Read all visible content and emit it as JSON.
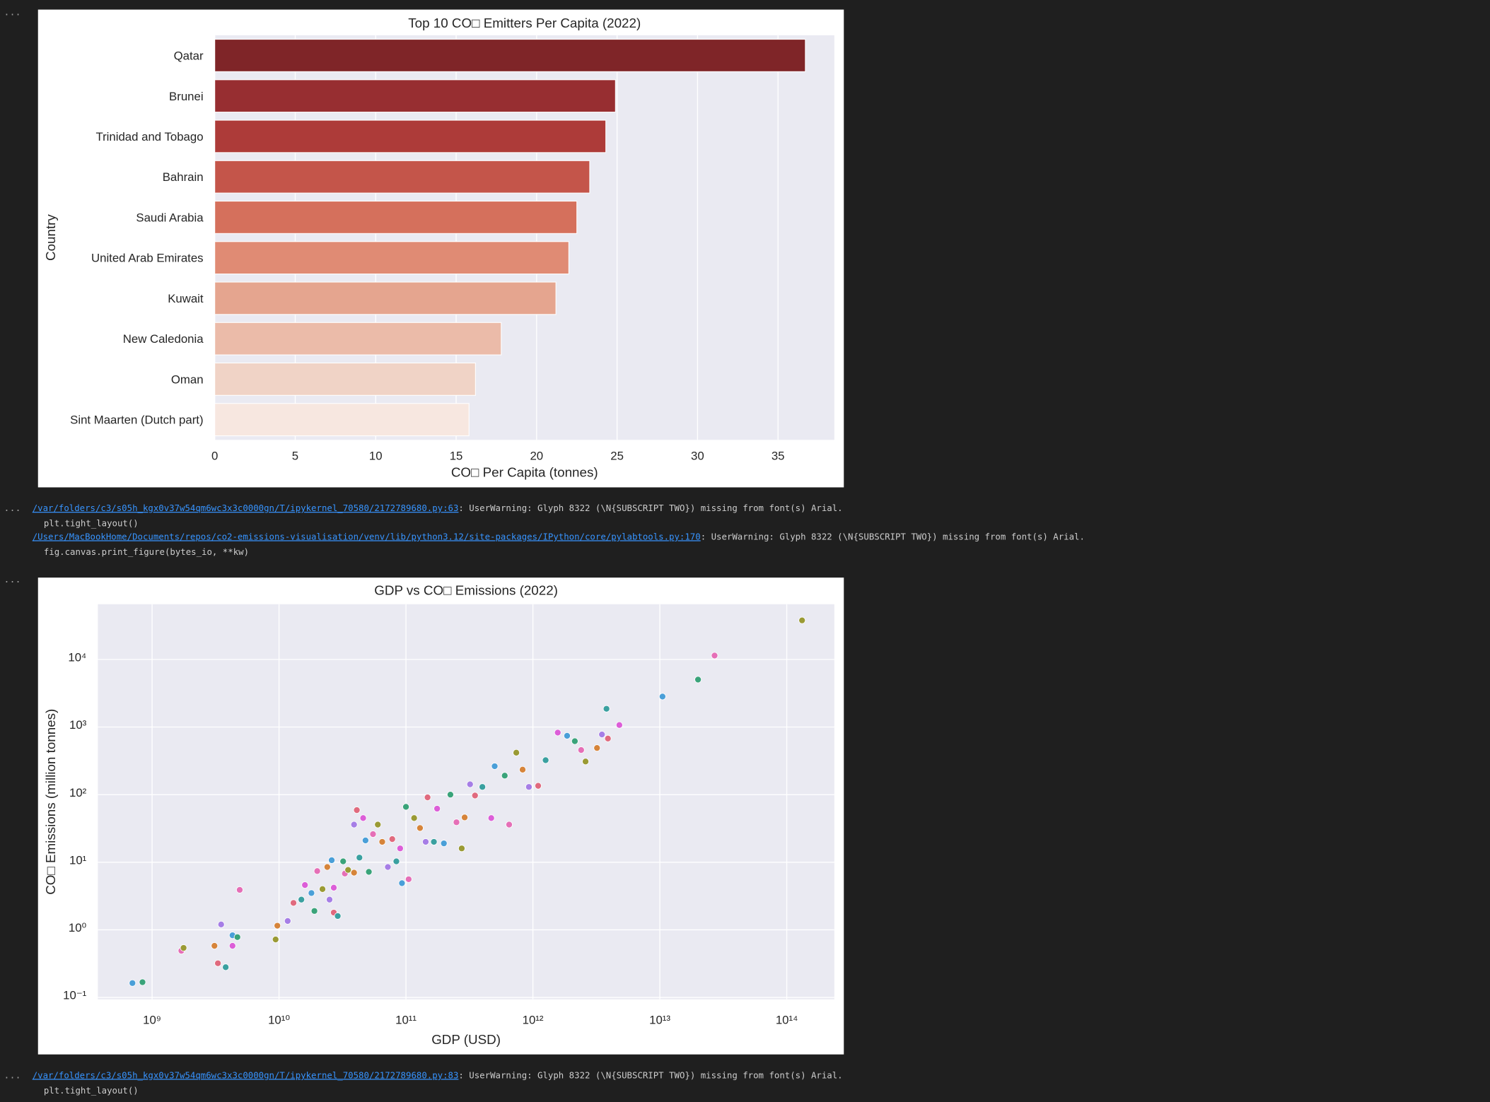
{
  "prompt": "...",
  "outputs": [
    {
      "link": "/var/folders/c3/s05h_kgx0v37w54qm6wc3x3c0000gn/T/ipykernel_70580/2172789680.py:63",
      "message": ": UserWarning: Glyph 8322 (\\N{SUBSCRIPT TWO}) missing from font(s) Arial.",
      "code": "plt.tight_layout()"
    },
    {
      "link": "/Users/MacBookHome/Documents/repos/co2-emissions-visualisation/venv/lib/python3.12/site-packages/IPython/core/pylabtools.py:170",
      "message": ": UserWarning: Glyph 8322 (\\N{SUBSCRIPT TWO}) missing from font(s) Arial.",
      "code": "fig.canvas.print_figure(bytes_io, **kw)"
    },
    {
      "link": "/var/folders/c3/s05h_kgx0v37w54qm6wc3x3c0000gn/T/ipykernel_70580/2172789680.py:83",
      "message": ": UserWarning: Glyph 8322 (\\N{SUBSCRIPT TWO}) missing from font(s) Arial.",
      "code": "plt.tight_layout()"
    }
  ],
  "chart_data": [
    {
      "type": "bar",
      "orientation": "horizontal",
      "title": "Top 10 CO□ Emitters Per Capita (2022)",
      "xlabel": "CO□ Per Capita (tonnes)",
      "ylabel": "Country",
      "categories": [
        "Qatar",
        "Brunei",
        "Trinidad and Tobago",
        "Bahrain",
        "Saudi Arabia",
        "United Arab Emirates",
        "Kuwait",
        "New Caledonia",
        "Oman",
        "Sint Maarten (Dutch part)"
      ],
      "values": [
        36.7,
        24.9,
        24.3,
        23.3,
        22.5,
        22.0,
        21.2,
        17.8,
        16.2,
        15.8
      ],
      "colors": [
        "#7f2528",
        "#972e31",
        "#ad3b39",
        "#c4554a",
        "#d5705c",
        "#e08b74",
        "#e5a58f",
        "#ebbba9",
        "#f0d3c6",
        "#f7e7e0"
      ],
      "xlim": [
        0,
        38.5
      ],
      "xticks": [
        0,
        5,
        10,
        15,
        20,
        25,
        30,
        35
      ],
      "grid": true
    },
    {
      "type": "scatter",
      "title": "GDP vs CO□ Emissions (2022)",
      "xlabel": "GDP (USD)",
      "ylabel": "CO□ Emissions (million tonnes)",
      "xscale": "log",
      "yscale": "log",
      "grid": true,
      "palette": [
        "#4a9fd8",
        "#3aa37a",
        "#e56fb7",
        "#9a9a34",
        "#d6843a",
        "#a67ee6",
        "#e06a7e",
        "#3aa0a0",
        "#dc5ed8"
      ],
      "xlim": [
        374000000,
        237000000000000
      ],
      "ylim": [
        0.0937,
        65600
      ],
      "xticks": [
        {
          "value": 1000000000,
          "label": "10⁹"
        },
        {
          "value": 10000000000,
          "label": "10¹⁰"
        },
        {
          "value": 100000000000,
          "label": "10¹¹"
        },
        {
          "value": 1000000000000,
          "label": "10¹²"
        },
        {
          "value": 10000000000000,
          "label": "10¹³"
        },
        {
          "value": 100000000000000,
          "label": "10¹⁴"
        }
      ],
      "yticks": [
        {
          "value": 0.1,
          "label": "10⁻¹"
        },
        {
          "value": 1,
          "label": "10⁰"
        },
        {
          "value": 10,
          "label": "10¹"
        },
        {
          "value": 100,
          "label": "10²"
        },
        {
          "value": 1000,
          "label": "10³"
        },
        {
          "value": 10000,
          "label": "10⁴"
        }
      ],
      "x": [
        700000000,
        840000000,
        1700000000,
        1770000000,
        3100000000,
        3500000000,
        3300000000,
        3800000000,
        4300000000,
        4300000000,
        4700000000,
        4900000000,
        9400000000,
        9700000000,
        11700000000,
        13000000000,
        15000000000,
        16000000000,
        18000000000,
        19000000000,
        20000000000,
        22000000000,
        24000000000,
        25000000000,
        27000000000,
        29000000000,
        27000000000,
        26000000000,
        32000000000,
        33000000000,
        35000000000,
        39000000000,
        39000000000,
        41000000000,
        43000000000,
        46000000000,
        48000000000,
        51000000000,
        55000000000,
        60000000000,
        65000000000,
        72000000000,
        78000000000,
        84000000000,
        90000000000,
        93000000000,
        100000000000,
        105000000000,
        116000000000,
        129000000000,
        143000000000,
        148000000000,
        166000000000,
        176000000000,
        199000000000,
        224000000000,
        250000000000,
        275000000000,
        290000000000,
        320000000000,
        350000000000,
        400000000000,
        470000000000,
        500000000000,
        600000000000,
        650000000000,
        740000000000,
        830000000000,
        930000000000,
        1100000000000,
        1260000000000,
        1570000000000,
        1860000000000,
        2140000000000,
        2400000000000,
        2600000000000,
        3200000000000,
        3500000000000,
        3900000000000,
        3800000000000,
        4800000000000,
        10500000000000,
        20000000000000,
        27000000000000,
        132000000000000
      ],
      "values": [
        0.163,
        0.168,
        0.49,
        0.54,
        0.58,
        1.2,
        0.32,
        0.28,
        0.58,
        0.83,
        0.78,
        3.9,
        0.72,
        1.15,
        1.35,
        2.5,
        2.8,
        4.6,
        3.5,
        1.9,
        7.4,
        4.0,
        8.5,
        2.8,
        1.8,
        1.6,
        4.2,
        10.7,
        10.3,
        6.8,
        7.7,
        7.0,
        36,
        59,
        11.7,
        45,
        21,
        7.2,
        26,
        36,
        20,
        8.5,
        22,
        10.3,
        16,
        4.9,
        66,
        5.6,
        45,
        32,
        20,
        91,
        20,
        62,
        19,
        100,
        39,
        16,
        46,
        142,
        97,
        130,
        45,
        263,
        191,
        36,
        417,
        234,
        130,
        135,
        323,
        826,
        741,
        617,
        457,
        309,
        490,
        776,
        676,
        1860,
        1070,
        2820,
        5030,
        11400,
        37800
      ]
    }
  ]
}
